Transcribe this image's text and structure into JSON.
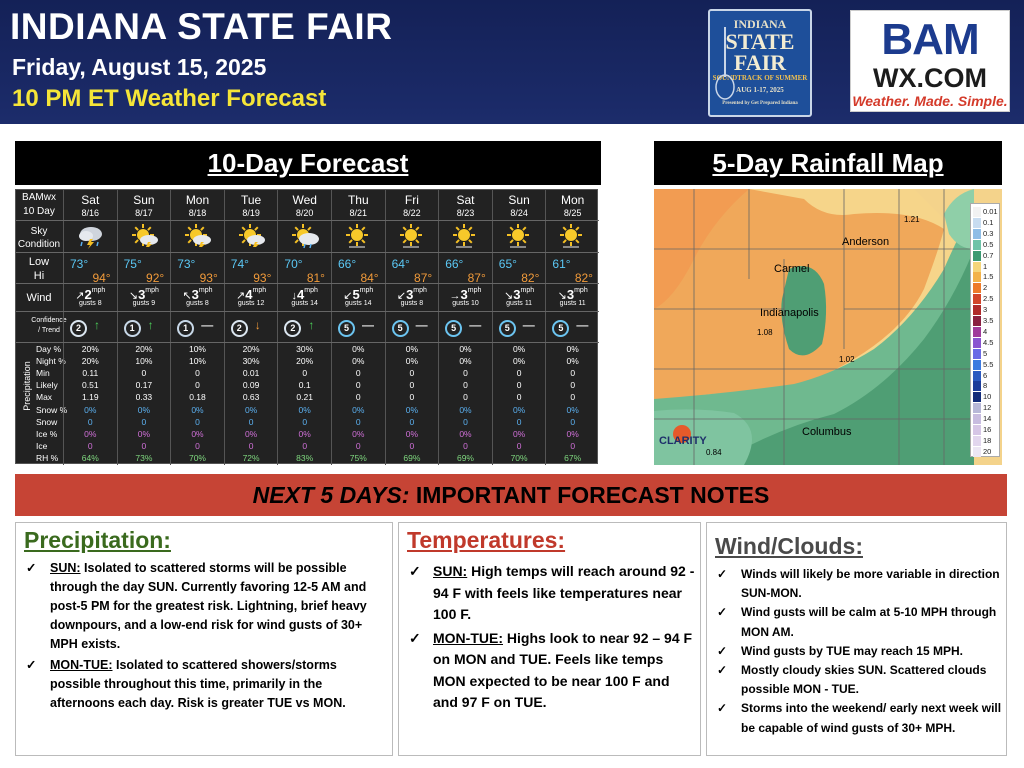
{
  "header": {
    "title": "INDIANA STATE FAIR",
    "date": "Friday, August 15, 2025",
    "subtitle": "10 PM ET Weather Forecast",
    "fair_logo": {
      "line1": "INDIANA",
      "line2": "STATE",
      "line3": "FAIR",
      "line4": "SOUNDTRACK OF SUMMER",
      "line5": "AUG 1-17, 2025",
      "line6": "Presented by Get Prepared Indiana"
    },
    "bam_logo": {
      "line1": "BAM",
      "line2": "WX.COM",
      "tagline": "Weather. Made. Simple."
    }
  },
  "forecast": {
    "title": "10-Day Forecast",
    "corner": {
      "line1": "BAMwx",
      "line2": "10 Day"
    },
    "row_labels": {
      "sky": "Sky Condition",
      "low": "Low",
      "hi": "Hi",
      "wind": "Wind",
      "confidence": "Confidence / Trend",
      "precip_group": "Precipitation",
      "day": "Day %",
      "night": "Night %",
      "min": "Min",
      "likely": "Likely",
      "max": "Max",
      "snow_pct": "Snow %",
      "snow": "Snow",
      "ice_pct": "Ice %",
      "ice": "Ice",
      "rh": "RH %"
    },
    "units": {
      "wind": "mph",
      "gusts": "gusts"
    },
    "days": [
      {
        "day": "Sat",
        "date": "8/16",
        "sky_icon": "thunderstorm-icon",
        "low": "73°",
        "hi": "94°",
        "wind_dir": "↗",
        "wind": "2",
        "gusts": "8",
        "confidence": "2",
        "trend": "↑",
        "day_pct": "20%",
        "night_pct": "20%",
        "min": "0.11",
        "likely": "0.51",
        "max": "1.19",
        "snow_pct": "0%",
        "snow": "0",
        "ice_pct": "0%",
        "ice": "0",
        "rh": "64%"
      },
      {
        "day": "Sun",
        "date": "8/17",
        "sky_icon": "sun-storm-icon",
        "low": "75°",
        "hi": "92°",
        "wind_dir": "↘",
        "wind": "3",
        "gusts": "9",
        "confidence": "1",
        "trend": "↑",
        "day_pct": "20%",
        "night_pct": "10%",
        "min": "0",
        "likely": "0.17",
        "max": "0.33",
        "snow_pct": "0%",
        "snow": "0",
        "ice_pct": "0%",
        "ice": "0",
        "rh": "73%"
      },
      {
        "day": "Mon",
        "date": "8/18",
        "sky_icon": "sun-storm-icon",
        "low": "73°",
        "hi": "93°",
        "wind_dir": "↖",
        "wind": "3",
        "gusts": "8",
        "confidence": "1",
        "trend": "—",
        "day_pct": "10%",
        "night_pct": "10%",
        "min": "0",
        "likely": "0",
        "max": "0.18",
        "snow_pct": "0%",
        "snow": "0",
        "ice_pct": "0%",
        "ice": "0",
        "rh": "70%"
      },
      {
        "day": "Tue",
        "date": "8/19",
        "sky_icon": "sun-storm-icon",
        "low": "74°",
        "hi": "93°",
        "wind_dir": "↗",
        "wind": "4",
        "gusts": "12",
        "confidence": "2",
        "trend": "↓",
        "day_pct": "20%",
        "night_pct": "30%",
        "min": "0.01",
        "likely": "0.09",
        "max": "0.63",
        "snow_pct": "0%",
        "snow": "0",
        "ice_pct": "0%",
        "ice": "0",
        "rh": "72%"
      },
      {
        "day": "Wed",
        "date": "8/20",
        "sky_icon": "sun-cloud-rain-icon",
        "low": "70°",
        "hi": "81°",
        "wind_dir": "↓",
        "wind": "4",
        "gusts": "14",
        "confidence": "2",
        "trend": "↑",
        "day_pct": "30%",
        "night_pct": "20%",
        "min": "0",
        "likely": "0.1",
        "max": "0.21",
        "snow_pct": "0%",
        "snow": "0",
        "ice_pct": "0%",
        "ice": "0",
        "rh": "83%"
      },
      {
        "day": "Thu",
        "date": "8/21",
        "sky_icon": "sun-icon",
        "low": "66°",
        "hi": "84°",
        "wind_dir": "↙",
        "wind": "5",
        "gusts": "14",
        "confidence": "5",
        "trend": "—",
        "day_pct": "0%",
        "night_pct": "0%",
        "min": "0",
        "likely": "0",
        "max": "0",
        "snow_pct": "0%",
        "snow": "0",
        "ice_pct": "0%",
        "ice": "0",
        "rh": "75%"
      },
      {
        "day": "Fri",
        "date": "8/22",
        "sky_icon": "sun-icon",
        "low": "64°",
        "hi": "87°",
        "wind_dir": "↙",
        "wind": "3",
        "gusts": "8",
        "confidence": "5",
        "trend": "—",
        "day_pct": "0%",
        "night_pct": "0%",
        "min": "0",
        "likely": "0",
        "max": "0",
        "snow_pct": "0%",
        "snow": "0",
        "ice_pct": "0%",
        "ice": "0",
        "rh": "69%"
      },
      {
        "day": "Sat",
        "date": "8/23",
        "sky_icon": "sun-icon",
        "low": "66°",
        "hi": "87°",
        "wind_dir": "→",
        "wind": "3",
        "gusts": "10",
        "confidence": "5",
        "trend": "—",
        "day_pct": "0%",
        "night_pct": "0%",
        "min": "0",
        "likely": "0",
        "max": "0",
        "snow_pct": "0%",
        "snow": "0",
        "ice_pct": "0%",
        "ice": "0",
        "rh": "69%"
      },
      {
        "day": "Sun",
        "date": "8/24",
        "sky_icon": "sun-icon",
        "low": "65°",
        "hi": "82°",
        "wind_dir": "↘",
        "wind": "3",
        "gusts": "11",
        "confidence": "5",
        "trend": "—",
        "day_pct": "0%",
        "night_pct": "0%",
        "min": "0",
        "likely": "0",
        "max": "0",
        "snow_pct": "0%",
        "snow": "0",
        "ice_pct": "0%",
        "ice": "0",
        "rh": "70%"
      },
      {
        "day": "Mon",
        "date": "8/25",
        "sky_icon": "sun-icon",
        "low": "61°",
        "hi": "82°",
        "wind_dir": "↘",
        "wind": "3",
        "gusts": "11",
        "confidence": "5",
        "trend": "—",
        "day_pct": "0%",
        "night_pct": "0%",
        "min": "0",
        "likely": "0",
        "max": "0",
        "snow_pct": "0%",
        "snow": "0",
        "ice_pct": "0%",
        "ice": "0",
        "rh": "67%"
      }
    ]
  },
  "chart_data": {
    "type": "table",
    "title": "10-Day Forecast",
    "columns": [
      "Sat 8/16",
      "Sun 8/17",
      "Mon 8/18",
      "Tue 8/19",
      "Wed 8/20",
      "Thu 8/21",
      "Fri 8/22",
      "Sat 8/23",
      "Sun 8/24",
      "Mon 8/25"
    ],
    "rows": {
      "Low": [
        73,
        75,
        73,
        74,
        70,
        66,
        64,
        66,
        65,
        61
      ],
      "Hi": [
        94,
        92,
        93,
        93,
        81,
        84,
        87,
        87,
        82,
        82
      ],
      "Wind mph": [
        2,
        3,
        3,
        4,
        4,
        5,
        3,
        3,
        3,
        3
      ],
      "Gusts": [
        8,
        9,
        8,
        12,
        14,
        14,
        8,
        10,
        11,
        11
      ],
      "Confidence": [
        2,
        1,
        1,
        2,
        2,
        5,
        5,
        5,
        5,
        5
      ],
      "Day %": [
        20,
        20,
        10,
        20,
        30,
        0,
        0,
        0,
        0,
        0
      ],
      "Night %": [
        20,
        10,
        10,
        30,
        20,
        0,
        0,
        0,
        0,
        0
      ],
      "Min": [
        0.11,
        0,
        0,
        0.01,
        0,
        0,
        0,
        0,
        0,
        0
      ],
      "Likely": [
        0.51,
        0.17,
        0,
        0.09,
        0.1,
        0,
        0,
        0,
        0,
        0
      ],
      "Max": [
        1.19,
        0.33,
        0.18,
        0.63,
        0.21,
        0,
        0,
        0,
        0,
        0
      ],
      "RH %": [
        64,
        73,
        70,
        72,
        83,
        75,
        69,
        69,
        70,
        67
      ]
    }
  },
  "rainfall": {
    "title": "5-Day Rainfall Map",
    "cities": [
      "Anderson",
      "Carmel",
      "Indianapolis",
      "Columbus"
    ],
    "values": [
      "1.21",
      "1.08",
      "1.02",
      "0.84"
    ],
    "brand": "CLARITY",
    "legend": [
      {
        "label": "0.01",
        "color": "#f2f2f2"
      },
      {
        "label": "0.1",
        "color": "#c8dcf0"
      },
      {
        "label": "0.3",
        "color": "#8fbde6"
      },
      {
        "label": "0.5",
        "color": "#6fc3a8"
      },
      {
        "label": "0.7",
        "color": "#3c9a72"
      },
      {
        "label": "1",
        "color": "#f5d57a"
      },
      {
        "label": "1.5",
        "color": "#f3b24a"
      },
      {
        "label": "2",
        "color": "#ee7a2a"
      },
      {
        "label": "2.5",
        "color": "#d2452a"
      },
      {
        "label": "3",
        "color": "#b02a2a"
      },
      {
        "label": "3.5",
        "color": "#8a2040"
      },
      {
        "label": "4",
        "color": "#a03a9a"
      },
      {
        "label": "4.5",
        "color": "#8a55d0"
      },
      {
        "label": "5",
        "color": "#6a6ae6"
      },
      {
        "label": "5.5",
        "color": "#3c7ae0"
      },
      {
        "label": "6",
        "color": "#2c5ac0"
      },
      {
        "label": "8",
        "color": "#1c3c9a"
      },
      {
        "label": "10",
        "color": "#142c7a"
      },
      {
        "label": "12",
        "color": "#b8b8d8"
      },
      {
        "label": "14",
        "color": "#c8bce0"
      },
      {
        "label": "16",
        "color": "#d6c6e6"
      },
      {
        "label": "18",
        "color": "#e2d6ee"
      },
      {
        "label": "20",
        "color": "#ece6f4"
      }
    ]
  },
  "notes": {
    "banner_italic": "NEXT 5 DAYS:",
    "banner_rest": " IMPORTANT FORECAST NOTES",
    "precip": {
      "heading": "Precipitation:",
      "items": [
        {
          "lead": "SUN:",
          "text": " Isolated to scattered storms will be possible through the day SUN.  Currently favoring 12-5 AM and post-5 PM for the greatest risk.  Lightning, brief heavy downpours, and a low-end risk for wind gusts of 30+ MPH exists."
        },
        {
          "lead": "MON-TUE:",
          "text": " Isolated to scattered showers/storms possible throughout this time, primarily in the afternoons each day.  Risk is greater TUE vs MON."
        }
      ]
    },
    "temps": {
      "heading": "Temperatures:",
      "items": [
        {
          "lead": "SUN:",
          "text": " High temps will reach around 92 - 94 F with feels like temperatures near 100 F."
        },
        {
          "lead": "MON-TUE:",
          "text": " Highs look to near 92 – 94 F on MON and TUE.  Feels like temps MON expected to be near 100 F and and 97 F on TUE."
        }
      ]
    },
    "wind": {
      "heading": "Wind/Clouds:",
      "items": [
        {
          "lead": "",
          "text": "Winds will likely be more variable in direction SUN-MON."
        },
        {
          "lead": "",
          "text": "Wind gusts will be calm at 5-10 MPH through MON AM."
        },
        {
          "lead": "",
          "text": "Wind gusts by TUE may reach 15 MPH."
        },
        {
          "lead": "",
          "text": "Mostly cloudy skies SUN. Scattered clouds possible MON - TUE."
        },
        {
          "lead": "",
          "text": "Storms into the weekend/ early next week will be capable of wind gusts of 30+ MPH."
        }
      ]
    }
  },
  "colors": {
    "header_bg": "#1b2a63",
    "subtitle": "#f5e538",
    "banner": "#c64435",
    "precip_head": "#3a6a1e",
    "temp_head": "#c0392b",
    "wind_head": "#4a4a4a",
    "low": "#5bc8f5",
    "hi": "#f29b3a"
  }
}
